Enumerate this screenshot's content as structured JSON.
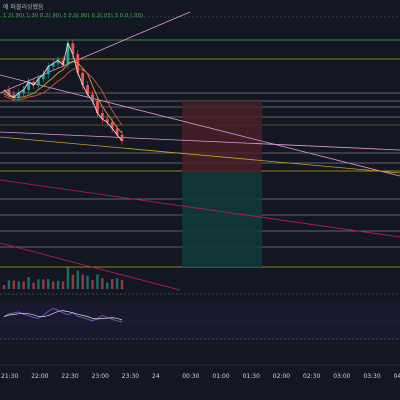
{
  "header": {
    "title": "에 퍼블리싱했음",
    "ohlc_text": "1 2(.90) 1:30 0.2(.90) 3  0.0(.90) 0.2(.05)  3 0.0 (.00)"
  },
  "colors": {
    "background": "#131722",
    "bull": "#26a69a",
    "bear": "#ef5350",
    "price_line": "#e0e0e0",
    "fib_orange": "#c9a227",
    "trend_pink": "#e29ad8",
    "trend_red": "#c2185b",
    "long_profit": "#0f3a37",
    "long_stop": "#4a2027",
    "rsi_line": "#7e57c2"
  },
  "chart_data": {
    "type": "line",
    "title": "",
    "xlabel": "",
    "ylabel": "",
    "x_tick_labels": [
      "21:30",
      "22:00",
      "22:30",
      "23:00",
      "23:30",
      "24",
      "00:30",
      "01:00",
      "01:30",
      "02:00",
      "02:30",
      "03:00",
      "03:30",
      "04"
    ],
    "series": [
      {
        "values": [
          0.55,
          0.52,
          0.5,
          0.53,
          0.55,
          0.6,
          0.58,
          0.62,
          0.65,
          0.7,
          0.72,
          0.74,
          0.71,
          0.85,
          0.78,
          0.66,
          0.58,
          0.52,
          0.48,
          0.4,
          0.36,
          0.34,
          0.3,
          0.26,
          0.22
        ]
      }
    ],
    "grid": true,
    "legend": "none"
  },
  "indicators": {
    "oscillator": [
      0.5,
      0.56,
      0.58,
      0.6,
      0.55,
      0.52,
      0.48,
      0.46,
      0.52,
      0.62,
      0.68,
      0.64,
      0.58,
      0.54,
      0.58,
      0.5,
      0.48,
      0.44,
      0.4,
      0.46,
      0.52,
      0.48,
      0.44,
      0.4,
      0.38
    ]
  }
}
